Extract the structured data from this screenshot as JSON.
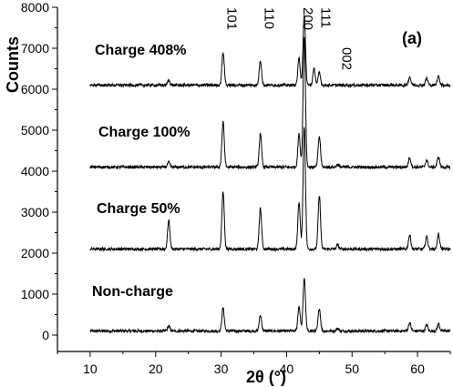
{
  "chart_data": {
    "type": "line",
    "xlabel": "2θ (°)",
    "ylabel": "Counts",
    "panel_label": "(a)",
    "xlim": [
      5,
      65
    ],
    "ylim": [
      -400,
      8000
    ],
    "x_ticks": [
      10,
      20,
      30,
      40,
      50,
      60
    ],
    "y_ticks": [
      0,
      1000,
      2000,
      3000,
      4000,
      5000,
      6000,
      7000,
      8000
    ],
    "y_tick_labels": [
      "0",
      "1000",
      "2000",
      "3000",
      "4000",
      "5000",
      "6000",
      "7000",
      "8000"
    ],
    "x_tick_labels": [
      "10",
      "20",
      "30",
      "40",
      "50",
      "60"
    ],
    "line_color": "#000000",
    "peak_labels": [
      {
        "text": "101",
        "x": 30.3
      },
      {
        "text": "110",
        "x": 36.0
      },
      {
        "text": "200",
        "x": 41.9
      },
      {
        "text": "111",
        "x": 44.6
      },
      {
        "text": "002",
        "x": 47.8
      }
    ],
    "series": [
      {
        "name": "Non-charge",
        "baseline": 100,
        "peaks": [
          [
            22.0,
            120
          ],
          [
            30.3,
            560
          ],
          [
            36.0,
            380
          ],
          [
            41.9,
            600
          ],
          [
            42.7,
            1300
          ],
          [
            45.0,
            550
          ],
          [
            47.8,
            60
          ],
          [
            58.8,
            200
          ],
          [
            61.4,
            150
          ],
          [
            63.2,
            170
          ]
        ]
      },
      {
        "name": "Charge 50%",
        "baseline": 2100,
        "peaks": [
          [
            22.0,
            700
          ],
          [
            30.3,
            1400
          ],
          [
            36.0,
            1000
          ],
          [
            41.9,
            1150
          ],
          [
            42.7,
            3000
          ],
          [
            45.0,
            1300
          ],
          [
            47.8,
            100
          ],
          [
            58.8,
            350
          ],
          [
            61.4,
            300
          ],
          [
            63.2,
            360
          ]
        ]
      },
      {
        "name": "Charge 100%",
        "baseline": 4100,
        "peaks": [
          [
            22.0,
            120
          ],
          [
            30.3,
            1100
          ],
          [
            36.0,
            800
          ],
          [
            41.9,
            800
          ],
          [
            42.7,
            3200
          ],
          [
            45.0,
            750
          ],
          [
            47.8,
            60
          ],
          [
            58.8,
            230
          ],
          [
            61.4,
            170
          ],
          [
            63.2,
            250
          ]
        ]
      },
      {
        "name": "Charge 408%",
        "baseline": 6100,
        "peaks": [
          [
            22.0,
            120
          ],
          [
            30.3,
            800
          ],
          [
            36.0,
            600
          ],
          [
            41.9,
            650
          ],
          [
            42.7,
            1700
          ],
          [
            44.2,
            400
          ],
          [
            45.0,
            300
          ],
          [
            58.8,
            200
          ],
          [
            61.4,
            170
          ],
          [
            63.2,
            220
          ]
        ]
      }
    ]
  }
}
